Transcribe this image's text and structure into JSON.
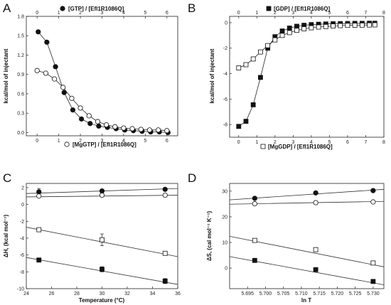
{
  "chart_data": [
    {
      "type": "scatter",
      "panel": "A",
      "top_label": "[GTP] / [Efl1R1086Q]",
      "bottom_label": "[MgGTP] / [Efl1R1086Q]",
      "ylabel": "kcal/mol of injectant",
      "xlim": [
        -0.5,
        6.5
      ],
      "ylim": [
        -0.05,
        1.8
      ],
      "xticks": [
        0,
        1,
        2,
        3,
        4,
        5,
        6
      ],
      "yticks": [
        0.0,
        0.3,
        0.6,
        0.9,
        1.2,
        1.5,
        1.8
      ],
      "ytick_labels": [
        "0.0",
        "0.3",
        "0.6",
        "0.9",
        "1.2",
        "1.5",
        "1.8"
      ],
      "series": [
        {
          "name": "[GTP] / [Efl1R1086Q]",
          "marker": "filled-circle",
          "x": [
            0.05,
            0.45,
            0.85,
            1.25,
            1.65,
            2.05,
            2.45,
            2.85,
            3.25,
            3.65,
            4.05,
            4.45,
            4.85,
            5.25,
            5.65,
            6.05
          ],
          "y": [
            1.56,
            1.4,
            1.02,
            0.62,
            0.35,
            0.21,
            0.14,
            0.1,
            0.08,
            0.06,
            0.04,
            0.03,
            0.02,
            0.01,
            0.01,
            0.0
          ]
        },
        {
          "name": "[MgGTP] / [Efl1R1086Q]",
          "marker": "open-circle",
          "x": [
            0.0,
            0.4,
            0.8,
            1.2,
            1.6,
            2.0,
            2.4,
            2.8,
            3.2,
            3.6,
            4.0,
            4.4,
            4.8,
            5.2,
            5.6,
            6.0
          ],
          "y": [
            0.96,
            0.92,
            0.83,
            0.7,
            0.53,
            0.38,
            0.26,
            0.17,
            0.12,
            0.09,
            0.07,
            0.06,
            0.05,
            0.04,
            0.04,
            0.03
          ]
        }
      ]
    },
    {
      "type": "scatter",
      "panel": "B",
      "top_label": "[GDP] / [Efl1R1086Q]",
      "bottom_label": "[MgGDP] / [Efl1R1086Q]",
      "ylabel": "kcal/mol of injectant",
      "xlim": [
        -0.5,
        8.0
      ],
      "ylim": [
        -9.0,
        0.5
      ],
      "xticks": [
        0,
        1,
        2,
        3,
        4,
        5,
        6,
        7,
        8
      ],
      "yticks": [
        0,
        -2,
        -4,
        -6,
        -8
      ],
      "series": [
        {
          "name": "[GDP] / [Efl1R1086Q]",
          "marker": "filled-square",
          "x": [
            0.0,
            0.4,
            0.8,
            1.2,
            1.6,
            2.0,
            2.4,
            2.8,
            3.2,
            3.6,
            4.0,
            4.4,
            4.8,
            5.2,
            5.6,
            6.0,
            6.4,
            6.8,
            7.2,
            7.5
          ],
          "y": [
            -8.15,
            -7.75,
            -6.45,
            -4.3,
            -2.0,
            -1.1,
            -0.65,
            -0.42,
            -0.28,
            -0.2,
            -0.15,
            -0.12,
            -0.1,
            -0.08,
            -0.07,
            -0.06,
            -0.05,
            -0.05,
            -0.04,
            -0.04
          ]
        },
        {
          "name": "[MgGDP] / [Efl1R1086Q]",
          "marker": "open-square",
          "x": [
            0.0,
            0.4,
            0.8,
            1.2,
            1.6,
            2.0,
            2.4,
            2.8,
            3.2,
            3.6,
            4.0,
            4.4,
            4.8,
            5.2,
            5.6,
            6.0,
            6.4,
            6.8,
            7.2,
            7.5
          ],
          "y": [
            -3.55,
            -3.3,
            -2.85,
            -2.3,
            -1.8,
            -1.35,
            -1.0,
            -0.78,
            -0.6,
            -0.48,
            -0.4,
            -0.34,
            -0.3,
            -0.26,
            -0.23,
            -0.21,
            -0.2,
            -0.19,
            -0.18,
            -0.17
          ]
        }
      ]
    },
    {
      "type": "scatter",
      "panel": "C",
      "xlabel": "Temperature (°C)",
      "ylabel": "ΔH, (kcal mol⁻¹)",
      "xlim": [
        24,
        36
      ],
      "ylim": [
        -10,
        2.5
      ],
      "xticks": [
        24,
        26,
        28,
        30,
        32,
        34,
        36
      ],
      "yticks": [
        2,
        0,
        -2,
        -4,
        -6,
        -8,
        -10
      ],
      "series": [
        {
          "marker": "filled-circle",
          "x": [
            25,
            30,
            35
          ],
          "y": [
            1.5,
            1.6,
            1.8
          ],
          "err": [
            0.4,
            0.2,
            0.2
          ],
          "fit": [
            [
              24,
              1.3
            ],
            [
              36,
              1.9
            ]
          ]
        },
        {
          "marker": "open-circle",
          "x": [
            25,
            30,
            35
          ],
          "y": [
            1.0,
            1.1,
            1.1
          ],
          "err": [
            0.1,
            0.1,
            0.1
          ],
          "fit": [
            [
              24,
              0.9
            ],
            [
              36,
              1.1
            ]
          ]
        },
        {
          "marker": "open-square",
          "x": [
            25,
            30,
            35
          ],
          "y": [
            -3.0,
            -4.2,
            -5.8
          ],
          "err": [
            0.1,
            0.7,
            0.1
          ],
          "fit": [
            [
              24,
              -2.7
            ],
            [
              36,
              -6.2
            ]
          ]
        },
        {
          "marker": "filled-square",
          "x": [
            25,
            30,
            35
          ],
          "y": [
            -6.6,
            -7.7,
            -9.1
          ],
          "err": [
            0.2,
            0.3,
            0.3
          ],
          "fit": [
            [
              24,
              -6.3
            ],
            [
              36,
              -9.5
            ]
          ]
        }
      ]
    },
    {
      "type": "scatter",
      "panel": "D",
      "xlabel": "ln T",
      "ylabel": "ΔS, (cal mol⁻¹ K⁻¹)",
      "xlim": [
        5.69,
        5.733
      ],
      "ylim": [
        -8,
        33
      ],
      "xticks": [
        5.695,
        5.7,
        5.705,
        5.71,
        5.715,
        5.72,
        5.725,
        5.73
      ],
      "xtick_labels": [
        "5.695",
        "5.700",
        "5.705",
        "5.710",
        "5.715",
        "5.720",
        "5.725",
        "5.730"
      ],
      "yticks": [
        30,
        20,
        10,
        0
      ],
      "series": [
        {
          "marker": "filled-circle",
          "x": [
            5.697,
            5.714,
            5.73
          ],
          "y": [
            27.2,
            29.3,
            30.2
          ],
          "fit": [
            [
              5.69,
              26.6
            ],
            [
              5.733,
              30.7
            ]
          ]
        },
        {
          "marker": "open-circle",
          "x": [
            5.697,
            5.714,
            5.73
          ],
          "y": [
            25.1,
            25.5,
            25.8
          ],
          "fit": [
            [
              5.69,
              24.9
            ],
            [
              5.733,
              26.0
            ]
          ]
        },
        {
          "marker": "open-square",
          "x": [
            5.697,
            5.714,
            5.73
          ],
          "y": [
            10.8,
            7.2,
            2.0
          ],
          "fit": [
            [
              5.69,
              12.4
            ],
            [
              5.733,
              0.5
            ]
          ]
        },
        {
          "marker": "filled-square",
          "x": [
            5.697,
            5.714,
            5.73
          ],
          "y": [
            3.0,
            -0.6,
            -5.2
          ],
          "fit": [
            [
              5.69,
              4.5
            ],
            [
              5.733,
              -6.5
            ]
          ]
        }
      ]
    }
  ]
}
